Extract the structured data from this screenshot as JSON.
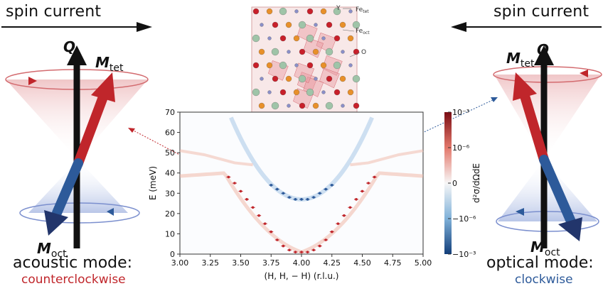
{
  "left_panel": {
    "spin_current": "spin current",
    "q": "Q",
    "m_tet": {
      "sym": "M",
      "sub": "tet"
    },
    "m_oct": {
      "sym": "M",
      "sub": "oct"
    },
    "mode": "acoustic mode:",
    "rotation": "counterclockwise"
  },
  "right_panel": {
    "spin_current": "spin current",
    "q": "Q",
    "m_tet": {
      "sym": "M",
      "sub": "tet"
    },
    "m_oct": {
      "sym": "M",
      "sub": "oct"
    },
    "mode": "optical mode:",
    "rotation": "clockwise"
  },
  "crystal": {
    "labels": {
      "y": "Y",
      "fe_tet": "Fe",
      "fe_tet_sub": "tet",
      "fe_oct": "Fe",
      "fe_oct_sub": "oct",
      "o": "O"
    }
  },
  "colors": {
    "red": "#c0262b",
    "blue": "#2d5a9a",
    "black": "#111111"
  },
  "chart_data": {
    "type": "heatmap",
    "xlabel": "(H, H, − H) (r.l.u.)",
    "ylabel": "E (meV)",
    "xlim": [
      3.0,
      5.0
    ],
    "ylim": [
      0,
      70
    ],
    "xticks": [
      "3.00",
      "3.25",
      "3.50",
      "3.75",
      "4.00",
      "4.25",
      "4.50",
      "4.75",
      "5.00"
    ],
    "yticks": [
      "0",
      "10",
      "20",
      "30",
      "40",
      "50",
      "60",
      "70"
    ],
    "colorbar": {
      "label": "d²σ/dΩdE",
      "ticks": [
        "10⁻³",
        "10⁻⁶",
        "0",
        "−10⁻⁶",
        "−10⁻³"
      ]
    },
    "series": [
      {
        "color": "#c0262b",
        "points": [
          [
            3.4,
            38
          ],
          [
            3.45,
            35
          ],
          [
            3.5,
            31
          ],
          [
            3.55,
            27
          ],
          [
            3.6,
            23
          ],
          [
            3.65,
            19
          ],
          [
            3.7,
            15
          ],
          [
            3.75,
            11
          ],
          [
            3.8,
            7
          ],
          [
            3.85,
            4
          ],
          [
            3.9,
            2
          ],
          [
            3.95,
            1
          ],
          [
            4.0,
            1
          ],
          [
            4.05,
            1
          ],
          [
            4.1,
            2
          ],
          [
            4.15,
            4
          ],
          [
            4.2,
            7
          ],
          [
            4.25,
            11
          ],
          [
            4.3,
            15
          ],
          [
            4.35,
            19
          ],
          [
            4.4,
            23
          ],
          [
            4.45,
            27
          ],
          [
            4.5,
            31
          ],
          [
            4.55,
            35
          ],
          [
            4.6,
            38
          ]
        ]
      },
      {
        "color": "#2d5a9a",
        "points": [
          [
            3.75,
            34
          ],
          [
            3.8,
            32
          ],
          [
            3.85,
            30
          ],
          [
            3.9,
            28
          ],
          [
            3.95,
            27
          ],
          [
            4.0,
            27
          ],
          [
            4.05,
            27
          ],
          [
            4.1,
            28
          ],
          [
            4.15,
            30
          ],
          [
            4.2,
            32
          ],
          [
            4.25,
            34
          ]
        ]
      }
    ]
  }
}
